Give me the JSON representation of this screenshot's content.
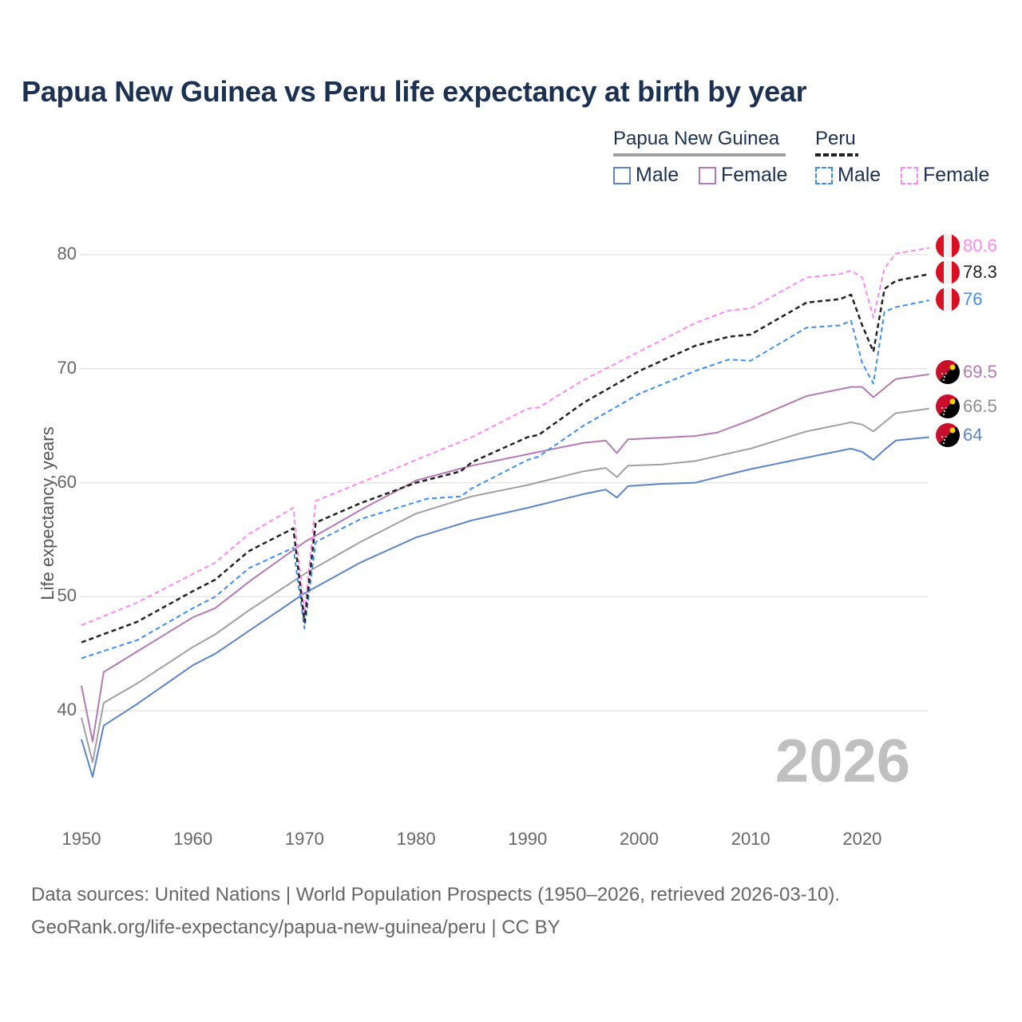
{
  "title": "Papua New Guinea vs Peru life expectancy at birth by year",
  "legend": {
    "groups": [
      {
        "label": "Papua New Guinea",
        "line_color": "#a0a0a0",
        "dashed": false
      },
      {
        "label": "Peru",
        "line_color": "#222222",
        "dashed": true
      }
    ],
    "items": [
      {
        "label": "Male",
        "color": "#5b84c9",
        "dashed": false
      },
      {
        "label": "Female",
        "color": "#b47ab3",
        "dashed": false
      },
      {
        "label": "Male",
        "color": "#3d8ef0",
        "dashed": true
      },
      {
        "label": "Female",
        "color": "#ff88f5",
        "dashed": true
      }
    ]
  },
  "current_year": "2026",
  "footer": {
    "line1": "Data sources: United Nations | World Population Prospects (1950–2026, retrieved 2026-03-10).",
    "line2": "GeoRank.org/life-expectancy/papua-new-guinea/peru | CC BY"
  },
  "end_labels": [
    {
      "text": "80.6",
      "color": "#ff88f5",
      "flag": "peru-flag"
    },
    {
      "text": "78.3",
      "color": "#222222",
      "flag": "peru-flag"
    },
    {
      "text": "76",
      "color": "#3d8ef0",
      "flag": "peru-flag"
    },
    {
      "text": "69.5",
      "color": "#b47ab3",
      "flag": "png-flag"
    },
    {
      "text": "66.5",
      "color": "#8f8f8f",
      "flag": "png-flag"
    },
    {
      "text": "64",
      "color": "#5b84c9",
      "flag": "png-flag"
    }
  ],
  "chart_data": {
    "type": "line",
    "title": "Papua New Guinea vs Peru life expectancy at birth by year",
    "xlabel": "",
    "ylabel": "Life expectancy, years",
    "x_range": [
      1950,
      2026
    ],
    "xticks": [
      1950,
      1960,
      1970,
      1980,
      1990,
      2000,
      2010,
      2020
    ],
    "yticks": [
      40,
      50,
      60,
      70,
      80
    ],
    "ylim": [
      33,
      82
    ],
    "grid": true,
    "legend_position": "top-right",
    "series_anchors_note": "values at listed years; intermediate years interpolated",
    "series": [
      {
        "name": "Peru Female",
        "color": "#ff88f5",
        "dashed": true,
        "width": 2,
        "anchors": [
          [
            1950,
            47.5
          ],
          [
            1955,
            49.5
          ],
          [
            1960,
            52.0
          ],
          [
            1962,
            53.0
          ],
          [
            1965,
            55.5
          ],
          [
            1969,
            57.8
          ],
          [
            1970,
            48.5
          ],
          [
            1971,
            58.4
          ],
          [
            1975,
            60.0
          ],
          [
            1980,
            62.0
          ],
          [
            1985,
            64.0
          ],
          [
            1990,
            66.5
          ],
          [
            1991,
            66.6
          ],
          [
            1995,
            69.0
          ],
          [
            2000,
            71.5
          ],
          [
            2005,
            74.0
          ],
          [
            2008,
            75.1
          ],
          [
            2010,
            75.3
          ],
          [
            2015,
            78.0
          ],
          [
            2018,
            78.3
          ],
          [
            2019,
            78.6
          ],
          [
            2020,
            78.0
          ],
          [
            2021,
            74.5
          ],
          [
            2022,
            78.8
          ],
          [
            2023,
            80.1
          ],
          [
            2026,
            80.6
          ]
        ]
      },
      {
        "name": "Peru",
        "color": "#222222",
        "dashed": true,
        "width": 2.5,
        "anchors": [
          [
            1950,
            46.0
          ],
          [
            1955,
            47.8
          ],
          [
            1960,
            50.5
          ],
          [
            1962,
            51.5
          ],
          [
            1965,
            54.0
          ],
          [
            1969,
            56.0
          ],
          [
            1970,
            47.8
          ],
          [
            1971,
            56.5
          ],
          [
            1975,
            58.2
          ],
          [
            1980,
            60.0
          ],
          [
            1984,
            61.0
          ],
          [
            1985,
            61.8
          ],
          [
            1990,
            64.0
          ],
          [
            1991,
            64.2
          ],
          [
            1995,
            67.0
          ],
          [
            2000,
            69.8
          ],
          [
            2005,
            72.0
          ],
          [
            2008,
            72.8
          ],
          [
            2010,
            73.0
          ],
          [
            2015,
            75.8
          ],
          [
            2018,
            76.1
          ],
          [
            2019,
            76.5
          ],
          [
            2020,
            73.8
          ],
          [
            2021,
            71.5
          ],
          [
            2022,
            77.0
          ],
          [
            2023,
            77.7
          ],
          [
            2026,
            78.3
          ]
        ]
      },
      {
        "name": "Peru Male",
        "color": "#3d8ef0",
        "dashed": true,
        "width": 2,
        "anchors": [
          [
            1950,
            44.6
          ],
          [
            1955,
            46.2
          ],
          [
            1960,
            49.0
          ],
          [
            1962,
            50.0
          ],
          [
            1965,
            52.5
          ],
          [
            1969,
            54.3
          ],
          [
            1970,
            47.2
          ],
          [
            1971,
            54.8
          ],
          [
            1975,
            56.8
          ],
          [
            1980,
            58.3
          ],
          [
            1981,
            58.6
          ],
          [
            1984,
            58.8
          ],
          [
            1985,
            59.5
          ],
          [
            1990,
            62.0
          ],
          [
            1991,
            62.3
          ],
          [
            1995,
            65.0
          ],
          [
            2000,
            67.8
          ],
          [
            2005,
            69.8
          ],
          [
            2008,
            70.8
          ],
          [
            2010,
            70.7
          ],
          [
            2015,
            73.6
          ],
          [
            2018,
            73.8
          ],
          [
            2019,
            74.2
          ],
          [
            2020,
            70.5
          ],
          [
            2021,
            68.7
          ],
          [
            2022,
            75.0
          ],
          [
            2023,
            75.4
          ],
          [
            2026,
            76.0
          ]
        ]
      },
      {
        "name": "Papua New Guinea Female",
        "color": "#b47ab3",
        "dashed": false,
        "width": 2,
        "anchors": [
          [
            1950,
            42.2
          ],
          [
            1951,
            37.3
          ],
          [
            1952,
            43.4
          ],
          [
            1955,
            45.2
          ],
          [
            1960,
            48.2
          ],
          [
            1962,
            49.0
          ],
          [
            1965,
            51.3
          ],
          [
            1970,
            54.8
          ],
          [
            1975,
            57.6
          ],
          [
            1980,
            60.2
          ],
          [
            1985,
            61.5
          ],
          [
            1990,
            62.5
          ],
          [
            1995,
            63.5
          ],
          [
            1997,
            63.7
          ],
          [
            1998,
            62.6
          ],
          [
            1999,
            63.8
          ],
          [
            2005,
            64.1
          ],
          [
            2007,
            64.4
          ],
          [
            2010,
            65.5
          ],
          [
            2015,
            67.6
          ],
          [
            2019,
            68.4
          ],
          [
            2020,
            68.4
          ],
          [
            2021,
            67.5
          ],
          [
            2023,
            69.1
          ],
          [
            2026,
            69.5
          ]
        ]
      },
      {
        "name": "Papua New Guinea",
        "color": "#a0a0a0",
        "dashed": false,
        "width": 2,
        "anchors": [
          [
            1950,
            39.4
          ],
          [
            1951,
            35.5
          ],
          [
            1952,
            40.7
          ],
          [
            1955,
            42.4
          ],
          [
            1960,
            45.6
          ],
          [
            1962,
            46.7
          ],
          [
            1965,
            48.8
          ],
          [
            1970,
            52.0
          ],
          [
            1975,
            54.8
          ],
          [
            1980,
            57.3
          ],
          [
            1985,
            58.8
          ],
          [
            1990,
            59.8
          ],
          [
            1995,
            61.0
          ],
          [
            1997,
            61.3
          ],
          [
            1998,
            60.5
          ],
          [
            1999,
            61.5
          ],
          [
            2002,
            61.6
          ],
          [
            2005,
            61.9
          ],
          [
            2010,
            63.0
          ],
          [
            2015,
            64.5
          ],
          [
            2019,
            65.3
          ],
          [
            2020,
            65.1
          ],
          [
            2021,
            64.5
          ],
          [
            2023,
            66.1
          ],
          [
            2026,
            66.5
          ]
        ]
      },
      {
        "name": "Papua New Guinea Male",
        "color": "#5b84c9",
        "dashed": false,
        "width": 2,
        "anchors": [
          [
            1950,
            37.5
          ],
          [
            1951,
            34.2
          ],
          [
            1952,
            38.7
          ],
          [
            1955,
            40.6
          ],
          [
            1960,
            44.0
          ],
          [
            1962,
            45.0
          ],
          [
            1965,
            47.0
          ],
          [
            1970,
            50.3
          ],
          [
            1975,
            53.0
          ],
          [
            1980,
            55.2
          ],
          [
            1985,
            56.7
          ],
          [
            1990,
            57.8
          ],
          [
            1995,
            59.0
          ],
          [
            1997,
            59.4
          ],
          [
            1998,
            58.7
          ],
          [
            1999,
            59.7
          ],
          [
            2002,
            59.9
          ],
          [
            2005,
            60.0
          ],
          [
            2010,
            61.2
          ],
          [
            2015,
            62.2
          ],
          [
            2019,
            63.0
          ],
          [
            2020,
            62.7
          ],
          [
            2021,
            62.0
          ],
          [
            2022,
            62.9
          ],
          [
            2023,
            63.7
          ],
          [
            2026,
            64.0
          ]
        ]
      }
    ]
  }
}
